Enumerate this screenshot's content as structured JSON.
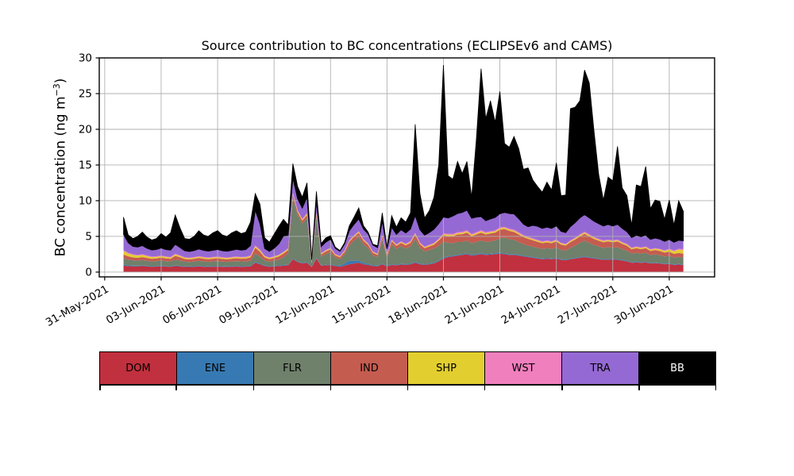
{
  "figure": {
    "background": "#ffffff",
    "title": "Source contribution to BC concentrations (ECLIPSEv6 and CAMS)",
    "ylabel": {
      "pre": "BC concentration (ng m",
      "sup": "−3",
      "post": ")"
    }
  },
  "chart_data": {
    "type": "area",
    "stacked": true,
    "title": "Source contribution to BC concentrations (ECLIPSEv6 and CAMS)",
    "ylabel": "BC concentration (ng m^-3)",
    "xlabel": "",
    "grid": true,
    "grid_color": "#b0b0b0",
    "x_start": "01-Jun-2021 00:00",
    "x_step_hours": 6,
    "xlim_days": [
      -1.29,
      31.41
    ],
    "ylim": [
      -0.67,
      30.0
    ],
    "y_ticks": [
      0,
      5,
      10,
      15,
      20,
      25,
      30
    ],
    "y_ticklabels": [
      "0",
      "5",
      "10",
      "15",
      "20",
      "25",
      "30"
    ],
    "x_tick_days": [
      -1,
      2,
      5,
      8,
      11,
      14,
      17,
      20,
      23,
      26,
      29
    ],
    "x_ticklabels": [
      "31-May-2021",
      "03-Jun-2021",
      "06-Jun-2021",
      "09-Jun-2021",
      "12-Jun-2021",
      "15-Jun-2021",
      "18-Jun-2021",
      "21-Jun-2021",
      "24-Jun-2021",
      "27-Jun-2021",
      "30-Jun-2021"
    ],
    "legend_position": "bottom-table",
    "series": [
      {
        "name": "DOM",
        "color": "#C1303E",
        "label_color": "#000000",
        "values": [
          0.9,
          0.85,
          0.8,
          0.8,
          0.85,
          0.8,
          0.75,
          0.78,
          0.82,
          0.78,
          0.75,
          0.85,
          0.8,
          0.72,
          0.72,
          0.75,
          0.8,
          0.75,
          0.72,
          0.75,
          0.78,
          0.74,
          0.72,
          0.75,
          0.78,
          0.75,
          0.76,
          0.8,
          1.3,
          1.1,
          0.85,
          0.75,
          0.8,
          0.85,
          0.9,
          0.95,
          1.8,
          1.4,
          1.2,
          1.3,
          0.7,
          1.9,
          0.9,
          0.95,
          1.0,
          0.85,
          0.75,
          0.9,
          1.1,
          1.2,
          1.3,
          1.1,
          1.0,
          0.85,
          0.8,
          1.1,
          0.8,
          1.0,
          0.95,
          1.05,
          1.0,
          1.1,
          1.3,
          1.1,
          1.0,
          1.1,
          1.2,
          1.5,
          1.9,
          2.1,
          2.2,
          2.3,
          2.4,
          2.5,
          2.3,
          2.4,
          2.5,
          2.4,
          2.45,
          2.5,
          2.6,
          2.5,
          2.4,
          2.4,
          2.3,
          2.2,
          2.1,
          2.0,
          1.9,
          1.8,
          1.85,
          1.8,
          1.9,
          1.7,
          1.65,
          1.8,
          1.9,
          2.0,
          2.1,
          2.0,
          1.9,
          1.8,
          1.7,
          1.75,
          1.7,
          1.75,
          1.6,
          1.5,
          1.3,
          1.35,
          1.3,
          1.35,
          1.2,
          1.25,
          1.2,
          1.1,
          1.15,
          1.0,
          1.05,
          1.0
        ]
      },
      {
        "name": "ENE",
        "color": "#3779B2",
        "label_color": "#000000",
        "values": [
          0.15,
          0.1,
          0.1,
          0.1,
          0.08,
          0.08,
          0.08,
          0.08,
          0.08,
          0.08,
          0.08,
          0.08,
          0.08,
          0.08,
          0.08,
          0.08,
          0.08,
          0.08,
          0.08,
          0.08,
          0.08,
          0.08,
          0.08,
          0.08,
          0.08,
          0.08,
          0.08,
          0.09,
          0.1,
          0.1,
          0.08,
          0.08,
          0.08,
          0.09,
          0.09,
          0.09,
          0.1,
          0.1,
          0.1,
          0.1,
          0.05,
          0.08,
          0.07,
          0.08,
          0.09,
          0.1,
          0.15,
          0.3,
          0.45,
          0.4,
          0.3,
          0.2,
          0.15,
          0.1,
          0.08,
          0.1,
          0.08,
          0.1,
          0.09,
          0.1,
          0.1,
          0.1,
          0.12,
          0.1,
          0.1,
          0.1,
          0.1,
          0.11,
          0.12,
          0.12,
          0.12,
          0.12,
          0.12,
          0.12,
          0.12,
          0.12,
          0.13,
          0.12,
          0.12,
          0.12,
          0.13,
          0.12,
          0.12,
          0.12,
          0.12,
          0.11,
          0.11,
          0.11,
          0.1,
          0.1,
          0.1,
          0.1,
          0.1,
          0.1,
          0.1,
          0.1,
          0.1,
          0.1,
          0.11,
          0.1,
          0.1,
          0.1,
          0.1,
          0.1,
          0.1,
          0.1,
          0.1,
          0.09,
          0.09,
          0.09,
          0.09,
          0.09,
          0.08,
          0.08,
          0.08,
          0.08,
          0.08,
          0.08,
          0.08,
          0.08
        ]
      },
      {
        "name": "FLR",
        "color": "#6F806B",
        "label_color": "#000000",
        "values": [
          0.9,
          0.8,
          0.75,
          0.7,
          0.75,
          0.7,
          0.65,
          0.68,
          0.72,
          0.68,
          0.65,
          0.8,
          0.75,
          0.65,
          0.62,
          0.65,
          0.7,
          0.66,
          0.64,
          0.66,
          0.68,
          0.65,
          0.63,
          0.66,
          0.68,
          0.66,
          0.67,
          0.72,
          1.2,
          1.0,
          0.7,
          0.62,
          0.7,
          0.8,
          1.1,
          1.6,
          8.5,
          6.5,
          5.5,
          6.2,
          0.45,
          5.8,
          1.2,
          1.5,
          1.7,
          1.1,
          0.9,
          1.3,
          2.2,
          2.8,
          3.3,
          2.6,
          2.2,
          1.4,
          1.2,
          3.3,
          1.1,
          2.8,
          2.2,
          2.5,
          2.2,
          2.4,
          3.2,
          2.2,
          1.8,
          1.9,
          2.0,
          2.1,
          2.2,
          1.9,
          1.7,
          1.8,
          1.7,
          1.8,
          1.6,
          1.7,
          1.8,
          1.7,
          1.75,
          1.8,
          2.0,
          2.2,
          2.1,
          2.0,
          1.8,
          1.6,
          1.5,
          1.45,
          1.4,
          1.35,
          1.4,
          1.35,
          1.45,
          1.3,
          1.25,
          1.5,
          1.7,
          2.0,
          2.2,
          2.0,
          1.8,
          1.7,
          1.6,
          1.65,
          1.6,
          1.65,
          1.5,
          1.4,
          1.2,
          1.25,
          1.2,
          1.25,
          1.1,
          1.15,
          1.1,
          1.0,
          1.05,
          0.95,
          1.0,
          0.95
        ]
      },
      {
        "name": "IND",
        "color": "#C55C50",
        "label_color": "#000000",
        "values": [
          0.5,
          0.45,
          0.4,
          0.4,
          0.42,
          0.4,
          0.38,
          0.38,
          0.4,
          0.38,
          0.38,
          0.55,
          0.45,
          0.38,
          0.36,
          0.38,
          0.4,
          0.38,
          0.36,
          0.38,
          0.4,
          0.37,
          0.36,
          0.38,
          0.4,
          0.38,
          0.39,
          0.45,
          0.8,
          0.65,
          0.42,
          0.36,
          0.4,
          0.45,
          0.5,
          0.45,
          0.45,
          0.4,
          0.4,
          0.4,
          0.15,
          0.35,
          0.3,
          0.35,
          0.4,
          0.3,
          0.28,
          0.35,
          0.5,
          0.55,
          0.6,
          0.5,
          0.45,
          0.35,
          0.32,
          0.45,
          0.3,
          0.45,
          0.42,
          0.45,
          0.45,
          0.5,
          0.6,
          0.5,
          0.45,
          0.5,
          0.55,
          0.7,
          0.9,
          0.95,
          1.0,
          1.05,
          1.1,
          1.1,
          1.0,
          1.05,
          1.1,
          1.05,
          1.1,
          1.1,
          1.2,
          1.2,
          1.15,
          1.1,
          1.05,
          1.0,
          0.95,
          0.9,
          0.85,
          0.8,
          0.82,
          0.8,
          0.85,
          0.75,
          0.72,
          0.8,
          0.85,
          0.9,
          0.95,
          0.9,
          0.85,
          0.8,
          0.78,
          0.8,
          0.78,
          0.8,
          0.75,
          0.7,
          0.6,
          0.65,
          0.62,
          0.65,
          0.58,
          0.6,
          0.58,
          0.55,
          0.58,
          0.52,
          0.55,
          0.55
        ]
      },
      {
        "name": "SHP",
        "color": "#E2CE2E",
        "label_color": "#000000",
        "values": [
          0.5,
          0.4,
          0.35,
          0.3,
          0.3,
          0.25,
          0.22,
          0.2,
          0.2,
          0.18,
          0.16,
          0.18,
          0.16,
          0.15,
          0.15,
          0.15,
          0.15,
          0.15,
          0.15,
          0.15,
          0.15,
          0.15,
          0.15,
          0.15,
          0.15,
          0.15,
          0.15,
          0.16,
          0.2,
          0.18,
          0.15,
          0.14,
          0.15,
          0.15,
          0.16,
          0.15,
          0.18,
          0.16,
          0.15,
          0.15,
          0.06,
          0.12,
          0.1,
          0.12,
          0.12,
          0.1,
          0.1,
          0.1,
          0.12,
          0.12,
          0.13,
          0.12,
          0.12,
          0.1,
          0.1,
          0.12,
          0.1,
          0.12,
          0.12,
          0.12,
          0.12,
          0.13,
          0.15,
          0.13,
          0.12,
          0.13,
          0.14,
          0.15,
          0.16,
          0.16,
          0.17,
          0.17,
          0.18,
          0.18,
          0.17,
          0.17,
          0.18,
          0.17,
          0.17,
          0.18,
          0.18,
          0.18,
          0.17,
          0.17,
          0.17,
          0.16,
          0.16,
          0.15,
          0.15,
          0.15,
          0.15,
          0.15,
          0.15,
          0.14,
          0.14,
          0.15,
          0.15,
          0.16,
          0.16,
          0.16,
          0.15,
          0.15,
          0.15,
          0.15,
          0.15,
          0.16,
          0.15,
          0.15,
          0.14,
          0.15,
          0.15,
          0.16,
          0.16,
          0.18,
          0.2,
          0.22,
          0.3,
          0.35,
          0.45,
          0.5
        ]
      },
      {
        "name": "WST",
        "color": "#F07FBE",
        "label_color": "#000000",
        "values": [
          0.12,
          0.1,
          0.1,
          0.1,
          0.1,
          0.1,
          0.1,
          0.1,
          0.1,
          0.1,
          0.1,
          0.12,
          0.1,
          0.1,
          0.1,
          0.1,
          0.1,
          0.1,
          0.1,
          0.1,
          0.1,
          0.1,
          0.1,
          0.1,
          0.1,
          0.1,
          0.1,
          0.11,
          0.15,
          0.13,
          0.1,
          0.1,
          0.1,
          0.1,
          0.11,
          0.1,
          0.12,
          0.1,
          0.1,
          0.1,
          0.05,
          0.1,
          0.08,
          0.09,
          0.1,
          0.08,
          0.08,
          0.09,
          0.1,
          0.1,
          0.1,
          0.1,
          0.1,
          0.08,
          0.08,
          0.1,
          0.08,
          0.1,
          0.1,
          0.1,
          0.1,
          0.1,
          0.12,
          0.1,
          0.1,
          0.1,
          0.11,
          0.12,
          0.13,
          0.14,
          0.15,
          0.15,
          0.15,
          0.16,
          0.15,
          0.15,
          0.16,
          0.15,
          0.15,
          0.15,
          0.16,
          0.15,
          0.15,
          0.15,
          0.14,
          0.14,
          0.13,
          0.13,
          0.12,
          0.12,
          0.12,
          0.12,
          0.12,
          0.11,
          0.11,
          0.12,
          0.12,
          0.13,
          0.13,
          0.13,
          0.12,
          0.12,
          0.12,
          0.12,
          0.12,
          0.12,
          0.11,
          0.11,
          0.1,
          0.1,
          0.1,
          0.11,
          0.1,
          0.1,
          0.1,
          0.1,
          0.11,
          0.12,
          0.13,
          0.14
        ]
      },
      {
        "name": "TRA",
        "color": "#9569D3",
        "label_color": "#000000",
        "values": [
          2.2,
          1.4,
          1.1,
          1.1,
          1.2,
          1.0,
          0.9,
          0.95,
          1.05,
          0.95,
          0.95,
          1.3,
          1.1,
          0.9,
          0.85,
          0.9,
          1.0,
          0.92,
          0.88,
          0.92,
          0.98,
          0.9,
          0.88,
          0.92,
          1.0,
          0.95,
          1.0,
          1.4,
          4.9,
          3.6,
          1.0,
          0.85,
          1.1,
          1.5,
          2.2,
          1.8,
          2.0,
          1.6,
          1.5,
          2.2,
          0.25,
          1.5,
          0.9,
          1.1,
          1.2,
          0.8,
          0.65,
          0.9,
          1.3,
          1.5,
          1.7,
          1.4,
          1.3,
          0.9,
          0.85,
          1.9,
          0.8,
          1.7,
          1.4,
          1.6,
          1.5,
          1.7,
          2.4,
          1.8,
          1.6,
          1.7,
          1.9,
          2.1,
          2.3,
          2.2,
          2.5,
          2.6,
          2.7,
          2.8,
          2.2,
          2.1,
          1.9,
          1.6,
          1.7,
          1.8,
          1.9,
          2.0,
          2.1,
          2.2,
          1.9,
          1.5,
          1.4,
          1.8,
          1.9,
          1.8,
          1.85,
          1.8,
          1.9,
          1.6,
          1.55,
          1.9,
          2.1,
          2.3,
          2.4,
          2.3,
          2.2,
          2.1,
          2.0,
          2.1,
          2.0,
          2.1,
          1.9,
          1.7,
          1.4,
          1.55,
          1.5,
          1.55,
          1.35,
          1.4,
          1.35,
          1.25,
          1.3,
          1.15,
          1.2,
          1.15
        ]
      },
      {
        "name": "BB",
        "color": "#000000",
        "label_color": "#ffffff",
        "values": [
          2.43,
          1.1,
          1.1,
          1.5,
          1.9,
          1.57,
          1.42,
          1.53,
          2.03,
          1.75,
          2.43,
          4.12,
          2.76,
          1.72,
          1.72,
          1.99,
          2.57,
          2.16,
          2.07,
          2.46,
          2.63,
          2.21,
          2.08,
          2.46,
          2.61,
          2.33,
          2.45,
          3.27,
          2.35,
          2.74,
          1.5,
          1.3,
          1.97,
          2.46,
          2.34,
          1.46,
          2.05,
          1.74,
          1.55,
          2.05,
          0.19,
          1.45,
          0.45,
          0.61,
          0.49,
          0.17,
          0.1,
          0.2,
          0.73,
          1.03,
          1.57,
          0.48,
          0.28,
          0.12,
          0.27,
          1.23,
          0.14,
          1.63,
          1.02,
          1.68,
          1.53,
          2.27,
          12.81,
          5.07,
          2.43,
          3.07,
          4.5,
          8.22,
          21.29,
          5.93,
          5.16,
          7.31,
          5.45,
          6.84,
          2.96,
          10.91,
          20.73,
          14.31,
          16.56,
          13.35,
          17.13,
          9.65,
          9.31,
          10.86,
          9.82,
          7.69,
          8.25,
          6.36,
          5.58,
          5.08,
          6.31,
          5.38,
          8.83,
          5.0,
          5.28,
          16.53,
          16.18,
          16.41,
          20.25,
          18.91,
          12.68,
          6.93,
          3.65,
          6.63,
          6.35,
          10.92,
          5.69,
          5.05,
          1.77,
          7.06,
          7.04,
          9.64,
          4.33,
          5.34,
          5.29,
          3.1,
          5.53,
          2.43,
          5.54,
          4.13
        ]
      }
    ]
  }
}
